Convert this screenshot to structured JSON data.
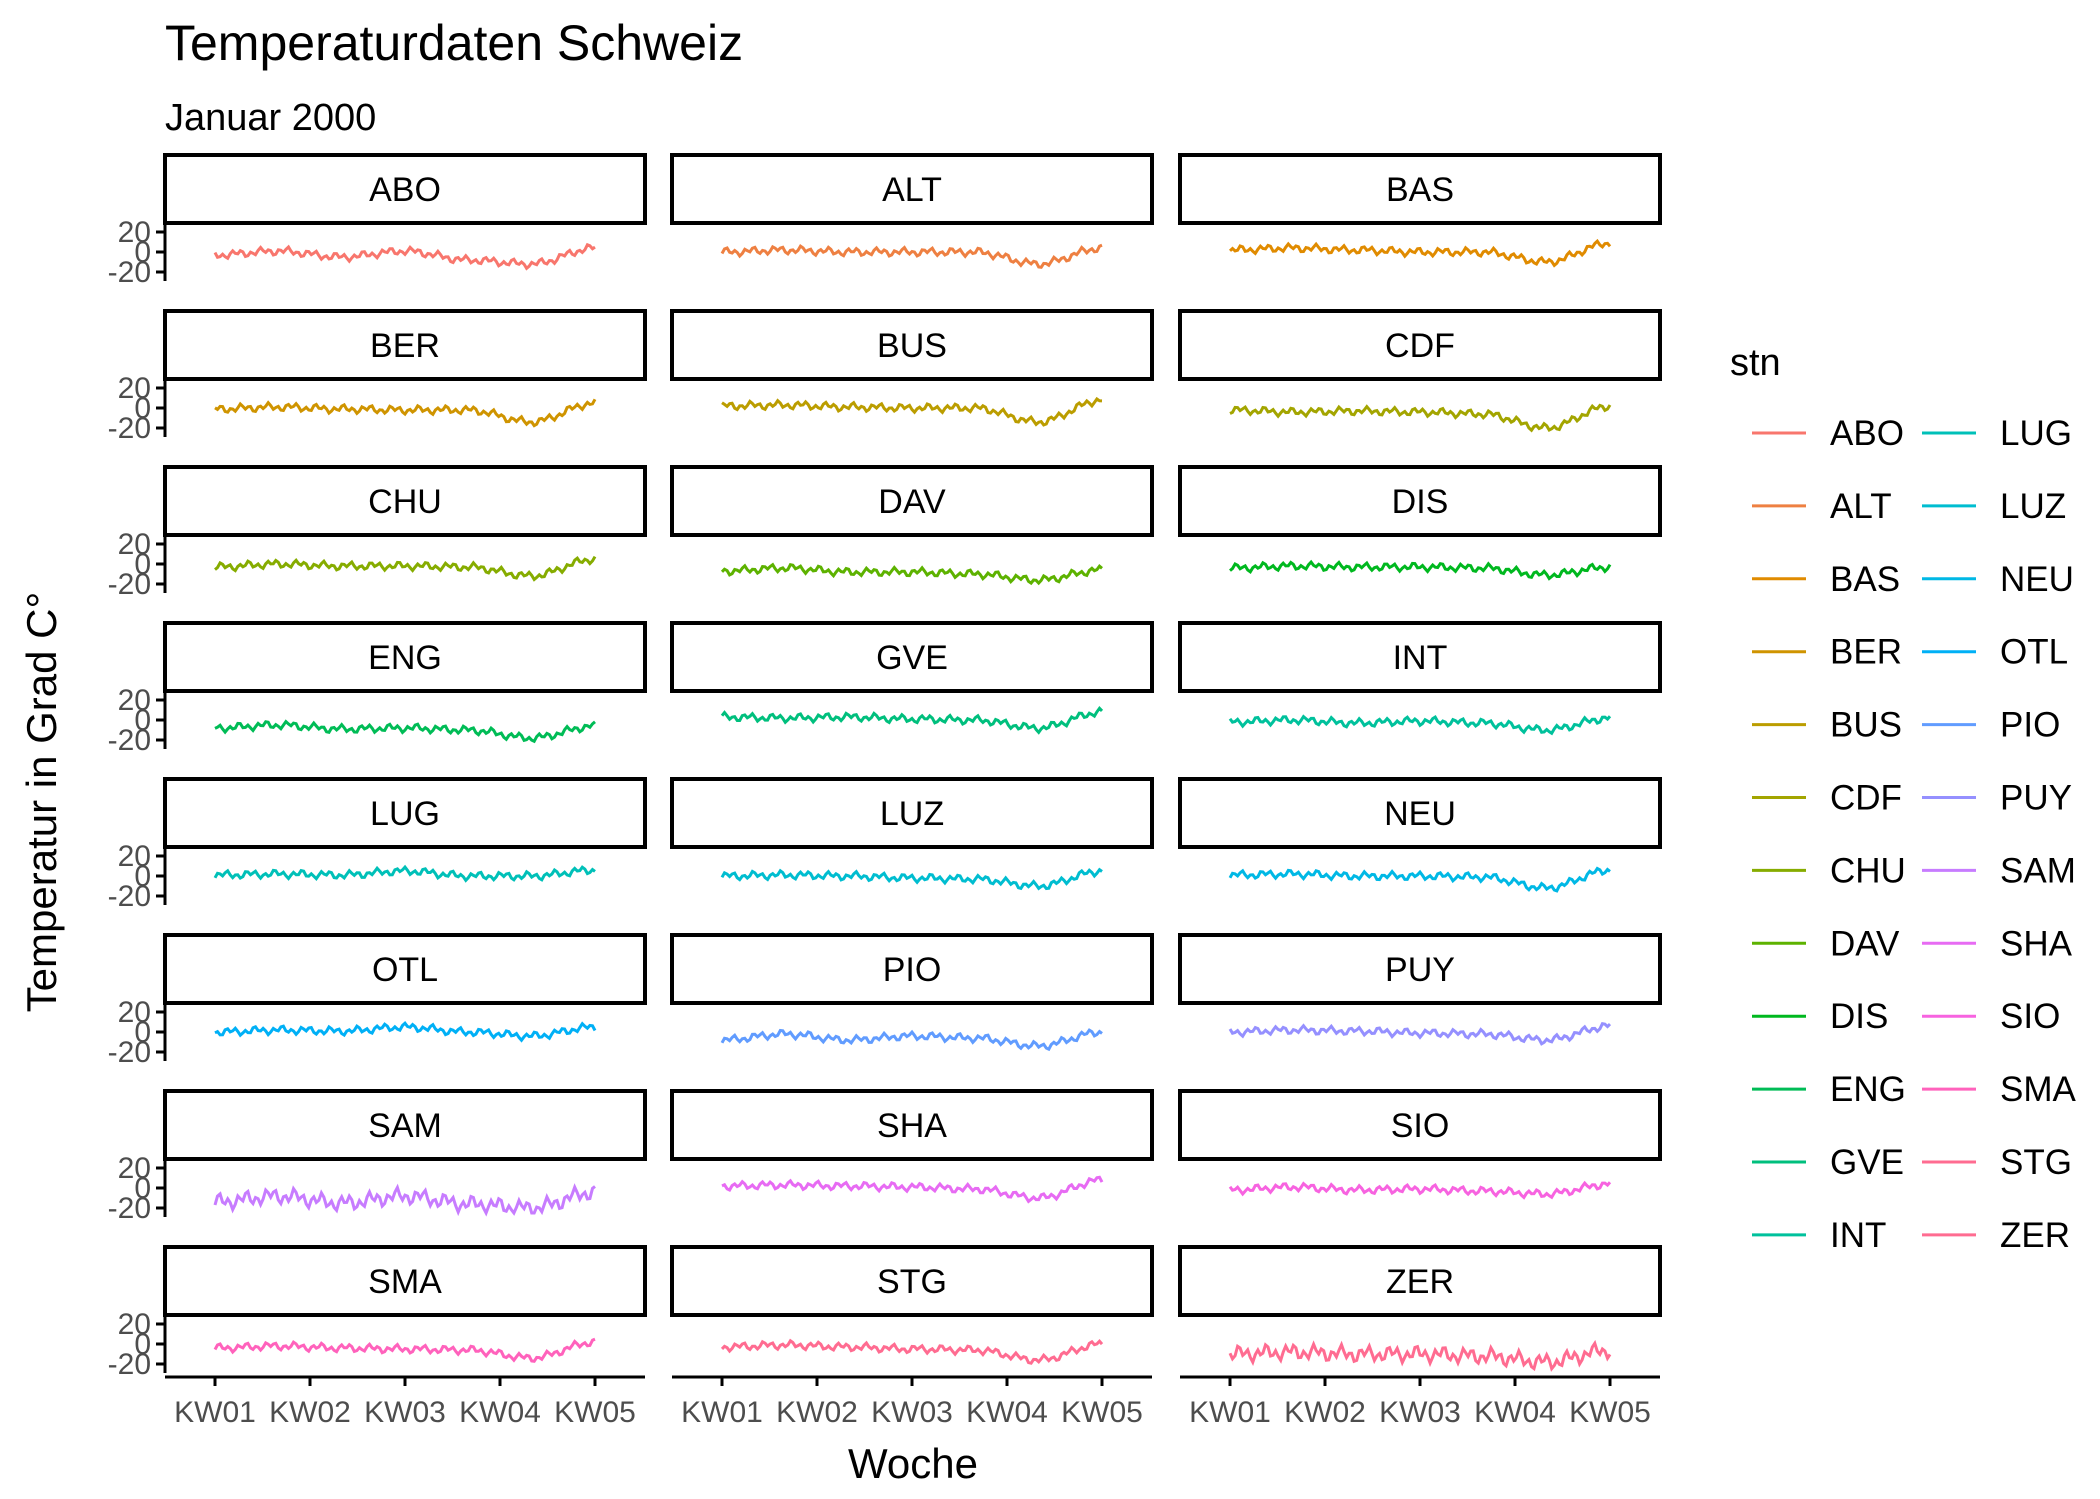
{
  "chart_data": {
    "type": "line",
    "title": "Temperaturdaten Schweiz",
    "subtitle": "Januar 2000",
    "xlabel": "Woche",
    "ylabel": "Temperatur in Grad C°",
    "x_ticks": [
      "KW01",
      "KW02",
      "KW03",
      "KW04",
      "KW05"
    ],
    "y_ticks": [
      "20",
      "0",
      "-20"
    ],
    "ylim": [
      -25,
      25
    ],
    "grid": false,
    "facet_layout": {
      "rows": 8,
      "cols": 3
    },
    "legend": {
      "title": "stn",
      "position": "right",
      "columns": 2
    },
    "series": [
      {
        "name": "ABO",
        "color": "#F8766D",
        "values": [
          -3,
          1,
          -5,
          1,
          -8,
          -12,
          4
        ]
      },
      {
        "name": "ALT",
        "color": "#EE8042",
        "values": [
          0,
          2,
          0,
          0,
          0,
          -12,
          4
        ]
      },
      {
        "name": "BAS",
        "color": "#E08B00",
        "values": [
          2,
          4,
          2,
          0,
          0,
          -10,
          9
        ]
      },
      {
        "name": "BER",
        "color": "#CF9400",
        "values": [
          -1,
          1,
          -1,
          -2,
          -2,
          -14,
          5
        ]
      },
      {
        "name": "BUS",
        "color": "#BB9D00",
        "values": [
          2,
          3,
          1,
          0,
          0,
          -14,
          8
        ]
      },
      {
        "name": "CDF",
        "color": "#A3A500",
        "values": [
          -2,
          -4,
          -3,
          -4,
          -6,
          -20,
          2
        ]
      },
      {
        "name": "CHU",
        "color": "#86AC00",
        "values": [
          -3,
          0,
          -2,
          -2,
          -3,
          -12,
          5
        ]
      },
      {
        "name": "DAV",
        "color": "#5DB200",
        "values": [
          -7,
          -4,
          -8,
          -8,
          -10,
          -16,
          -6
        ]
      },
      {
        "name": "DIS",
        "color": "#00B81F",
        "values": [
          -4,
          -2,
          -3,
          -3,
          -4,
          -11,
          -3
        ]
      },
      {
        "name": "ENG",
        "color": "#00BC56",
        "values": [
          -8,
          -5,
          -9,
          -8,
          -10,
          -18,
          -6
        ]
      },
      {
        "name": "GVE",
        "color": "#00BF7D",
        "values": [
          3,
          2,
          3,
          1,
          0,
          -8,
          8
        ]
      },
      {
        "name": "INT",
        "color": "#00C19C",
        "values": [
          -2,
          0,
          -3,
          -1,
          -3,
          -10,
          2
        ]
      },
      {
        "name": "LUG",
        "color": "#00C0B8",
        "values": [
          1,
          2,
          1,
          5,
          0,
          0,
          6
        ]
      },
      {
        "name": "LUZ",
        "color": "#00BDD0",
        "values": [
          0,
          1,
          0,
          -2,
          -3,
          -10,
          5
        ]
      },
      {
        "name": "NEU",
        "color": "#00B8E5",
        "values": [
          1,
          2,
          0,
          0,
          -1,
          -12,
          6
        ]
      },
      {
        "name": "OTL",
        "color": "#00B0F6",
        "values": [
          0,
          2,
          1,
          5,
          0,
          -4,
          5
        ]
      },
      {
        "name": "PIO",
        "color": "#619CFF",
        "values": [
          -8,
          -2,
          -8,
          -4,
          -6,
          -14,
          0
        ]
      },
      {
        "name": "PUY",
        "color": "#9590FF",
        "values": [
          0,
          2,
          1,
          -1,
          -2,
          -8,
          6
        ]
      },
      {
        "name": "SAM",
        "color": "#C77CFF",
        "values": [
          -14,
          -8,
          -15,
          -8,
          -16,
          -20,
          -4
        ]
      },
      {
        "name": "SHA",
        "color": "#E76BF3",
        "values": [
          2,
          3,
          2,
          1,
          -1,
          -10,
          8
        ]
      },
      {
        "name": "SIO",
        "color": "#F763E0",
        "values": [
          -2,
          1,
          -2,
          -1,
          -3,
          -6,
          4
        ]
      },
      {
        "name": "SMA",
        "color": "#FF62BC",
        "values": [
          -4,
          -2,
          -4,
          -5,
          -6,
          -14,
          2
        ]
      },
      {
        "name": "STG",
        "color": "#FF6C91",
        "values": [
          -3,
          -1,
          -3,
          -5,
          -6,
          -16,
          0
        ]
      },
      {
        "name": "ZER",
        "color": "#FF6C91",
        "values": [
          -10,
          -8,
          -10,
          -10,
          -12,
          -18,
          -6
        ]
      }
    ]
  }
}
